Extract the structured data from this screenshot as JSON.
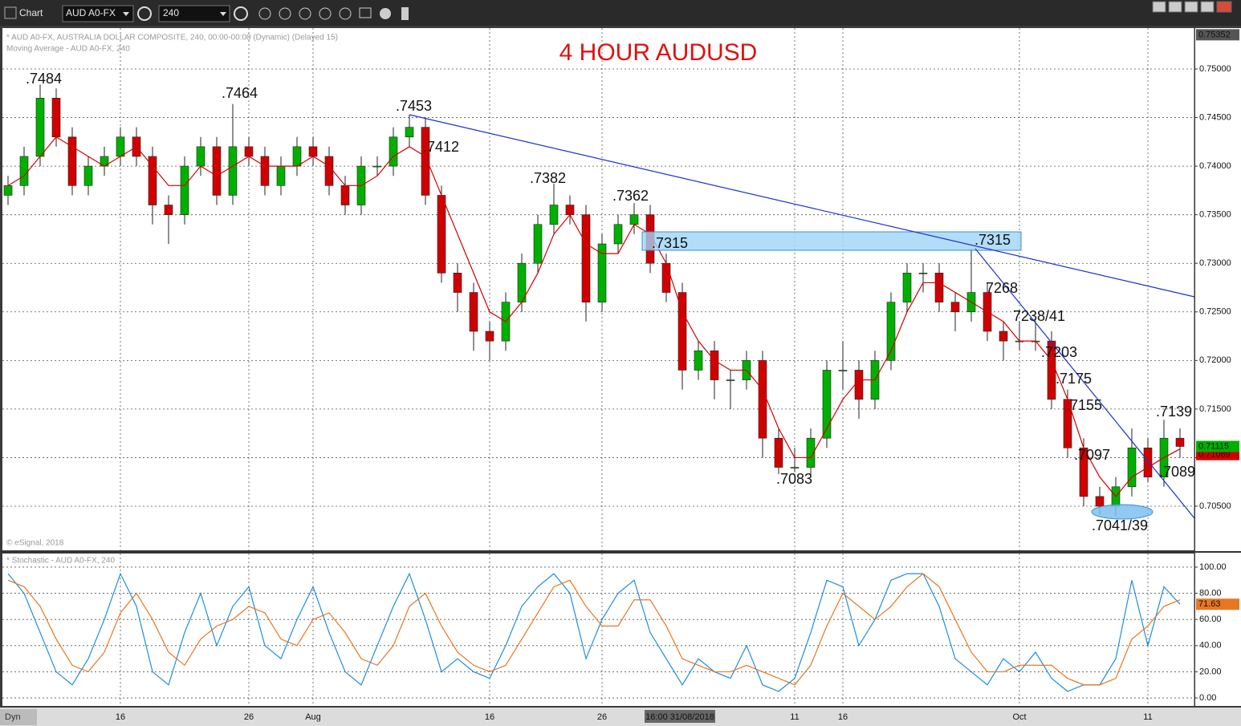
{
  "toolbar": {
    "title": "Chart",
    "symbol": "AUD A0-FX",
    "interval": "240"
  },
  "status": {
    "mode": "Dyn"
  },
  "chart_data": [
    {
      "type": "candlestick",
      "title": "4 HOUR AUDUSD",
      "header": "* AUD A0-FX, AUSTRALIA DOLLAR COMPOSITE, 240, 00:00-00:00 (Dynamic) (Delayed 15)",
      "source": "© eSignal, 2018",
      "cursor_price": 0.75352,
      "cursor_time": "16:00 31/08/2018",
      "up_color": "#00b000",
      "down_color": "#d00000",
      "categories": [
        null,
        null,
        null,
        null,
        null,
        null,
        null,
        "16",
        null,
        null,
        null,
        null,
        null,
        null,
        null,
        "26",
        null,
        null,
        null,
        "Aug",
        null,
        null,
        null,
        null,
        null,
        null,
        null,
        null,
        null,
        null,
        "16",
        null,
        null,
        null,
        null,
        null,
        null,
        "26",
        null,
        null,
        null,
        null,
        null,
        null,
        null,
        null,
        null,
        null,
        null,
        "11",
        null,
        null,
        "16",
        null,
        null,
        null,
        null,
        null,
        null,
        null,
        null,
        null,
        null,
        "Oct",
        null,
        null,
        null,
        null,
        null,
        null,
        null,
        "11",
        null,
        null
      ],
      "open": [
        0.737,
        0.738,
        0.741,
        0.747,
        0.743,
        0.738,
        0.74,
        0.741,
        0.743,
        0.741,
        0.736,
        0.735,
        0.74,
        0.742,
        0.737,
        0.742,
        0.741,
        0.738,
        0.74,
        0.742,
        0.741,
        0.738,
        0.736,
        0.74,
        0.74,
        0.743,
        0.744,
        0.737,
        0.729,
        0.727,
        0.723,
        0.722,
        0.726,
        0.73,
        0.734,
        0.736,
        0.735,
        0.726,
        0.732,
        0.734,
        0.735,
        0.73,
        0.727,
        0.719,
        0.721,
        0.718,
        0.718,
        0.72,
        0.712,
        0.709,
        0.709,
        0.712,
        0.719,
        0.719,
        0.716,
        0.72,
        0.726,
        0.729,
        0.729,
        0.726,
        0.725,
        0.727,
        0.723,
        0.722,
        0.722,
        0.722,
        0.716,
        0.711,
        0.706,
        0.705,
        0.707,
        0.711,
        0.708,
        0.712
      ],
      "high": [
        0.739,
        0.742,
        0.7484,
        0.748,
        0.744,
        0.741,
        0.742,
        0.744,
        0.744,
        0.742,
        0.737,
        0.741,
        0.743,
        0.743,
        0.7464,
        0.743,
        0.742,
        0.741,
        0.743,
        0.743,
        0.742,
        0.739,
        0.741,
        0.741,
        0.744,
        0.7453,
        0.745,
        0.738,
        0.73,
        0.728,
        0.724,
        0.727,
        0.731,
        0.735,
        0.7382,
        0.737,
        0.736,
        0.733,
        0.735,
        0.7362,
        0.736,
        0.731,
        0.728,
        0.722,
        0.722,
        0.719,
        0.721,
        0.721,
        0.713,
        0.711,
        0.713,
        0.72,
        0.722,
        0.72,
        0.721,
        0.727,
        0.73,
        0.73,
        0.73,
        0.727,
        0.7315,
        0.728,
        0.724,
        0.724,
        0.7241,
        0.723,
        0.717,
        0.712,
        0.707,
        0.708,
        0.713,
        0.712,
        0.7139,
        0.713
      ],
      "low": [
        0.736,
        0.737,
        0.74,
        0.742,
        0.737,
        0.737,
        0.739,
        0.74,
        0.74,
        0.734,
        0.732,
        0.734,
        0.739,
        0.736,
        0.736,
        0.74,
        0.737,
        0.737,
        0.739,
        0.74,
        0.737,
        0.735,
        0.735,
        0.739,
        0.739,
        0.742,
        0.736,
        0.728,
        0.725,
        0.721,
        0.72,
        0.721,
        0.725,
        0.729,
        0.733,
        0.734,
        0.724,
        0.725,
        0.731,
        0.733,
        0.729,
        0.726,
        0.717,
        0.718,
        0.716,
        0.715,
        0.717,
        0.71,
        0.7083,
        0.7085,
        0.708,
        0.711,
        0.717,
        0.714,
        0.715,
        0.719,
        0.725,
        0.727,
        0.725,
        0.723,
        0.724,
        0.722,
        0.72,
        0.721,
        0.721,
        0.715,
        0.71,
        0.705,
        0.7041,
        0.704,
        0.706,
        0.7075,
        0.707,
        0.71
      ],
      "close": [
        0.738,
        0.741,
        0.747,
        0.743,
        0.738,
        0.74,
        0.741,
        0.743,
        0.741,
        0.736,
        0.735,
        0.74,
        0.742,
        0.737,
        0.742,
        0.741,
        0.738,
        0.74,
        0.742,
        0.741,
        0.738,
        0.736,
        0.74,
        0.74,
        0.743,
        0.744,
        0.737,
        0.729,
        0.727,
        0.723,
        0.722,
        0.726,
        0.73,
        0.734,
        0.736,
        0.735,
        0.726,
        0.732,
        0.734,
        0.735,
        0.73,
        0.727,
        0.719,
        0.721,
        0.718,
        0.718,
        0.72,
        0.712,
        0.709,
        0.709,
        0.712,
        0.719,
        0.719,
        0.716,
        0.72,
        0.726,
        0.729,
        0.729,
        0.726,
        0.725,
        0.727,
        0.723,
        0.722,
        0.722,
        0.722,
        0.716,
        0.711,
        0.706,
        0.705,
        0.707,
        0.711,
        0.708,
        0.712,
        0.71115
      ],
      "series": [
        {
          "name": "Moving Average - AUD A0-FX, 240",
          "color": "#d40000",
          "values": [
            0.738,
            0.739,
            0.741,
            0.743,
            0.742,
            0.741,
            0.74,
            0.741,
            0.742,
            0.74,
            0.738,
            0.738,
            0.74,
            0.739,
            0.74,
            0.741,
            0.74,
            0.74,
            0.74,
            0.741,
            0.74,
            0.738,
            0.738,
            0.739,
            0.741,
            0.742,
            0.741,
            0.737,
            0.733,
            0.729,
            0.725,
            0.724,
            0.726,
            0.729,
            0.733,
            0.735,
            0.732,
            0.731,
            0.731,
            0.734,
            0.733,
            0.73,
            0.725,
            0.722,
            0.72,
            0.719,
            0.719,
            0.717,
            0.713,
            0.71,
            0.71,
            0.713,
            0.716,
            0.718,
            0.718,
            0.721,
            0.725,
            0.728,
            0.728,
            0.727,
            0.726,
            0.725,
            0.724,
            0.722,
            0.722,
            0.72,
            0.716,
            0.711,
            0.708,
            0.706,
            0.708,
            0.709,
            0.71,
            0.71089
          ]
        }
      ],
      "ylim": [
        0.70046,
        0.75421
      ],
      "yticks": [
        {
          "value": 0.705,
          "label": "0.70500"
        },
        {
          "value": 0.71,
          "label": "0.71000"
        },
        {
          "value": 0.715,
          "label": "0.71500"
        },
        {
          "value": 0.72,
          "label": "0.72000"
        },
        {
          "value": 0.725,
          "label": "0.72500"
        },
        {
          "value": 0.73,
          "label": "0.73000"
        },
        {
          "value": 0.735,
          "label": "0.73500"
        },
        {
          "value": 0.74,
          "label": "0.74000"
        },
        {
          "value": 0.745,
          "label": "0.74500"
        },
        {
          "value": 0.75,
          "label": "0.75000"
        }
      ],
      "grid": true,
      "annotations": [
        ".7484",
        ".7464",
        ".7453",
        ".7412",
        ".7382",
        ".7362",
        ".7315",
        ".7315",
        "7268",
        "7238/41",
        ".7203",
        ".7175",
        ".7155",
        ".7097",
        ".7139",
        ".7089",
        ".7083",
        ".7041/39"
      ]
    },
    {
      "type": "line",
      "title": "* Stochastic - AUD A0-FX, 240",
      "series": [
        {
          "color": "#1e8fe0",
          "values": [
            95,
            80,
            50,
            20,
            10,
            30,
            60,
            95,
            70,
            20,
            10,
            50,
            80,
            40,
            70,
            85,
            40,
            30,
            60,
            85,
            50,
            20,
            10,
            40,
            70,
            95,
            60,
            20,
            30,
            20,
            15,
            40,
            70,
            85,
            95,
            80,
            30,
            60,
            80,
            90,
            50,
            30,
            10,
            30,
            20,
            15,
            40,
            10,
            5,
            15,
            50,
            90,
            85,
            40,
            60,
            90,
            95,
            95,
            70,
            30,
            20,
            10,
            30,
            20,
            35,
            15,
            5,
            10,
            10,
            30,
            90,
            40,
            85,
            71.63
          ]
        },
        {
          "color": "#e87722",
          "values": [
            90,
            85,
            70,
            45,
            25,
            20,
            35,
            65,
            80,
            60,
            35,
            25,
            45,
            55,
            60,
            70,
            65,
            45,
            40,
            60,
            65,
            50,
            30,
            25,
            40,
            70,
            80,
            55,
            35,
            25,
            20,
            25,
            45,
            65,
            85,
            90,
            70,
            55,
            55,
            75,
            75,
            55,
            30,
            25,
            20,
            20,
            25,
            20,
            15,
            10,
            25,
            55,
            80,
            70,
            60,
            70,
            85,
            95,
            85,
            60,
            35,
            20,
            20,
            25,
            25,
            25,
            15,
            10,
            10,
            15,
            45,
            55,
            70,
            75
          ]
        }
      ],
      "ylim": [
        -6.1,
        110.4
      ],
      "yticks": [
        {
          "value": 0,
          "label": "0.00"
        },
        {
          "value": 20,
          "label": "20.00"
        },
        {
          "value": 40,
          "label": "40.00"
        },
        {
          "value": 60,
          "label": "60.00"
        },
        {
          "value": 80,
          "label": "80.00"
        },
        {
          "value": 100,
          "label": "100.00"
        }
      ],
      "grid": true
    }
  ]
}
